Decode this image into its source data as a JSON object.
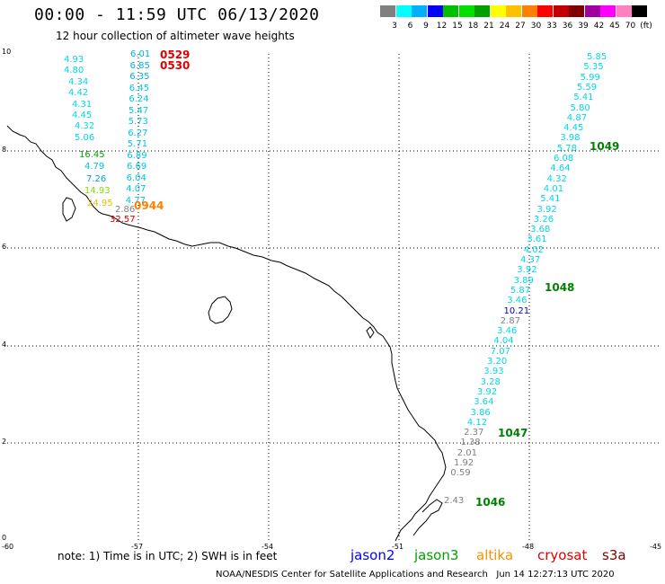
{
  "title": "00:00 - 11:59 UTC 06/13/2020",
  "subtitle": "12 hour collection of altimeter wave heights",
  "colorbar": {
    "colors": [
      "#808080",
      "#00ffff",
      "#00b0ff",
      "#0000ff",
      "#00c000",
      "#00e000",
      "#00a000",
      "#ffff00",
      "#ffc000",
      "#ff8000",
      "#ff0000",
      "#c00000",
      "#800000",
      "#a000a0",
      "#ff00ff",
      "#ff80c0",
      "#000000"
    ],
    "labels": [
      "3",
      "6",
      "9",
      "12",
      "15",
      "18",
      "21",
      "24",
      "27",
      "30",
      "33",
      "36",
      "39",
      "42",
      "45",
      "70",
      "(ft)"
    ]
  },
  "axes": {
    "y_ticks": [
      "10",
      "8",
      "6",
      "4",
      "2",
      "0"
    ],
    "x_ticks": [
      "-60",
      "-57",
      "-54",
      "-51",
      "-48",
      "-45"
    ]
  },
  "tracks": {
    "left_blue_col": {
      "color": "#00b0d0",
      "values": [
        "6.01",
        "6.85",
        "6.35",
        "6.45",
        "6.24",
        "5.47",
        "5.73",
        "6.27",
        "5.71",
        "6.89",
        "6.69",
        "6.04",
        "4.07",
        "4.77"
      ]
    },
    "left_cyan_col": {
      "values": [
        "4.93",
        "4.80",
        "4.34",
        "4.42",
        "4.31",
        "4.45",
        "4.32",
        "5.06"
      ]
    },
    "left_mixed": [
      {
        "v": "16.45",
        "c": "#00a000"
      },
      {
        "v": "4.79",
        "c": "#00c0e0"
      },
      {
        "v": "7.26",
        "c": "#00a0e0"
      },
      {
        "v": "14.93",
        "c": "#80e000"
      },
      {
        "v": "24.95",
        "c": "#e0c000"
      },
      {
        "v": "2.86",
        "c": "#808080"
      },
      {
        "v": "32.57",
        "c": "#d00000"
      }
    ],
    "pass_labels_left": [
      {
        "v": "0529",
        "c": "#e00000"
      },
      {
        "v": "0530",
        "c": "#e00000"
      },
      {
        "v": "0944",
        "c": "#ff8000"
      }
    ],
    "right_track": {
      "values": [
        "5.85",
        "5.35",
        "5.99",
        "5.59",
        "5.41",
        "5.80",
        "4.87",
        "4.45",
        "3.98",
        "5.78",
        "6.08",
        "4.64",
        "4.32",
        "4.01",
        "5.41",
        "3.92",
        "3.26",
        "3.68",
        "3.61",
        "4.02",
        "4.37",
        "3.92",
        "3.89",
        "5.87",
        "3.46",
        "10.21",
        "2.87",
        "3.46",
        "4.04",
        "7.07",
        "3.20",
        "3.93",
        "3.28",
        "3.92",
        "3.64",
        "3.86",
        "4.12",
        "2.37",
        "1.38",
        "2.01",
        "1.92",
        "0.59",
        "2.43"
      ]
    },
    "pass_labels_right": [
      "1049",
      "1048",
      "1047",
      "1046"
    ]
  },
  "note": "note: 1) Time is in UTC; 2) SWH is in feet",
  "legend": [
    {
      "name": "jason2",
      "color": "#0000ff"
    },
    {
      "name": "jason3",
      "color": "#00a000"
    },
    {
      "name": "altika",
      "color": "#ff9000"
    },
    {
      "name": "cryosat",
      "color": "#e00000"
    },
    {
      "name": "s3a",
      "color": "#800000"
    }
  ],
  "credit": "NOAA/NESDIS Center for Satellite Applications and Research   Jun 14 12:27:13 UTC 2020"
}
